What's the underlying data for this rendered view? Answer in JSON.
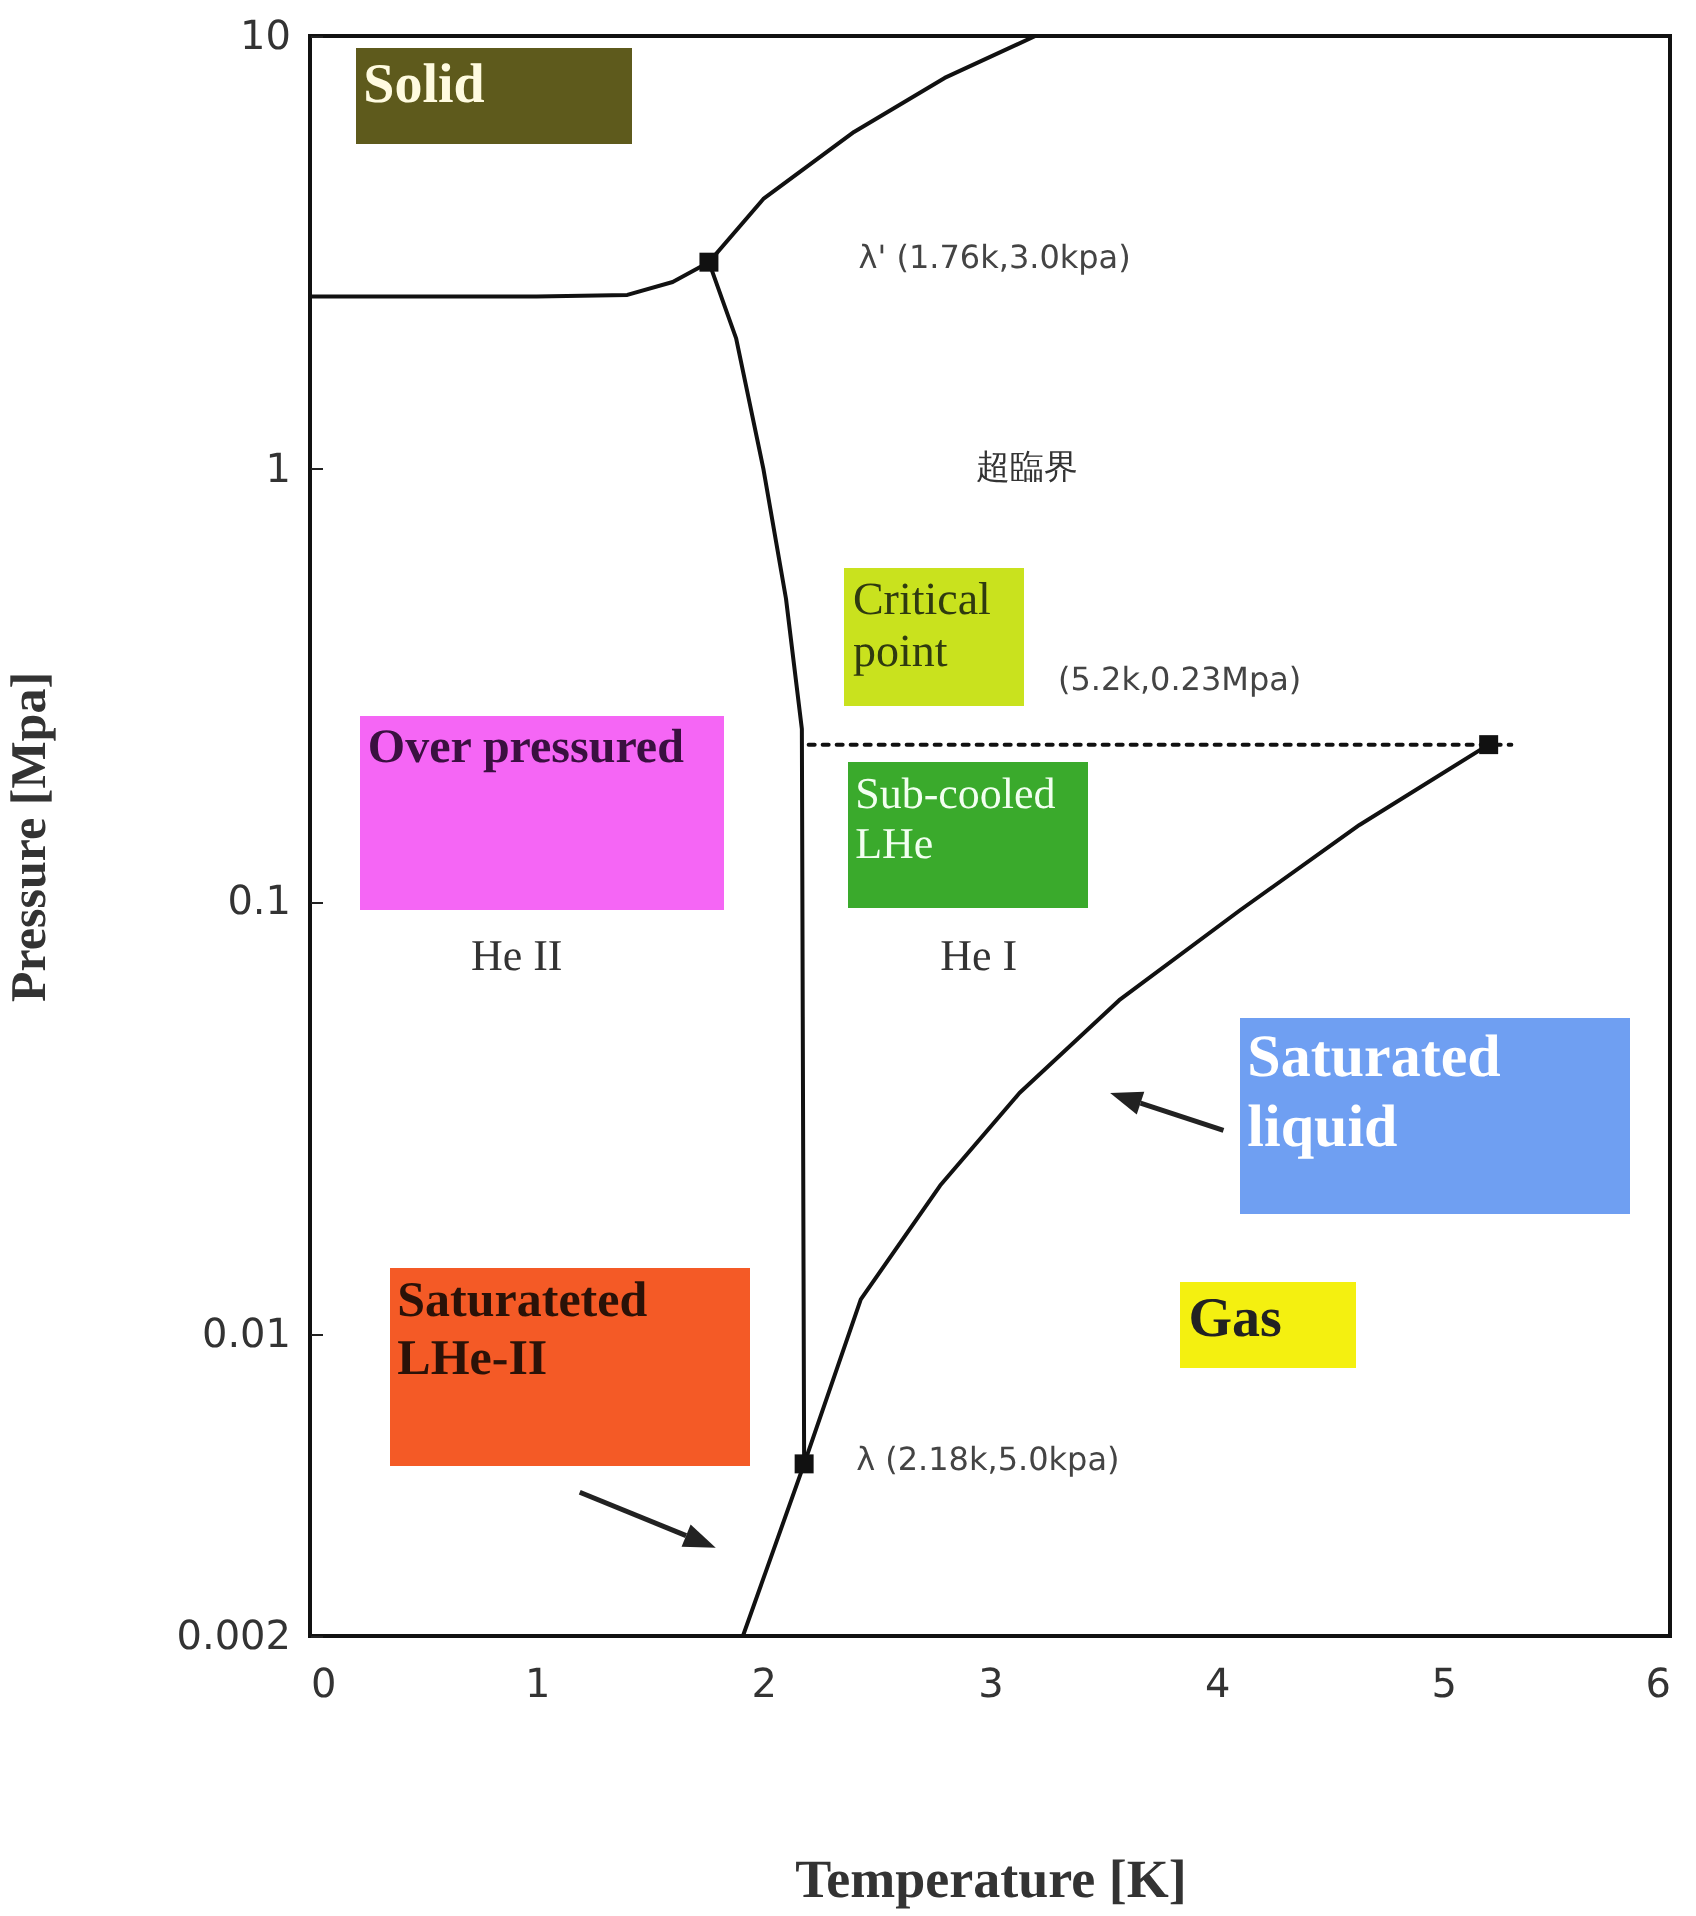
{
  "chart_data": {
    "type": "line",
    "xlabel": "Temperature [K]",
    "ylabel": "Pressure [Mpa]",
    "xlim": [
      0,
      6
    ],
    "xticks": [
      0,
      1,
      2,
      3,
      4,
      5,
      6
    ],
    "ylim": [
      0.002,
      10
    ],
    "yticks": [
      0.002,
      0.01,
      0.1,
      1,
      10
    ],
    "log": "y",
    "grid": false,
    "series": [
      {
        "type": "line",
        "color": "#111111",
        "x": [
          0,
          1.0,
          1.4,
          1.6,
          1.76,
          2.0,
          2.4,
          2.8,
          3.2
        ],
        "values": [
          2.5,
          2.5,
          2.52,
          2.7,
          3.0,
          4.2,
          6,
          8,
          10
        ]
      },
      {
        "type": "line",
        "color": "#111111",
        "x": [
          1.76,
          1.88,
          2.0,
          2.1,
          2.17,
          2.18
        ],
        "values": [
          3.0,
          2.0,
          1.0,
          0.5,
          0.25,
          0.005
        ]
      },
      {
        "type": "line",
        "color": "#111111",
        "x": [
          1.91,
          2.18,
          2.43,
          2.78,
          3.13,
          3.57,
          4.1,
          4.63,
          5.2
        ],
        "values": [
          0.002,
          0.005,
          0.012,
          0.022,
          0.036,
          0.059,
          0.095,
          0.15,
          0.23
        ]
      },
      {
        "type": "line",
        "color": "#111111",
        "line_style": "dotted",
        "x": [
          2.2,
          5.3
        ],
        "values": [
          0.23,
          0.23
        ]
      },
      {
        "type": "scatter",
        "color": "#111111",
        "marker": "square",
        "x": [
          1.76,
          2.18,
          5.2
        ],
        "values": [
          3.0,
          0.005,
          0.23
        ]
      }
    ],
    "annotations": [
      "Solid",
      "λ' (1.76k,3.0kpa)",
      "超臨界",
      "Critical point",
      "(5.2k,0.23Mpa)",
      "Over pressured",
      "Sub-cooled LHe",
      "He II",
      "He I",
      "Saturated liquid",
      "Gas",
      "Saturateted LHe-II",
      {
        "text": "λ (2.18k,5.0kpa)",
        "x": 2.18,
        "y": 0.005
      }
    ]
  }
}
